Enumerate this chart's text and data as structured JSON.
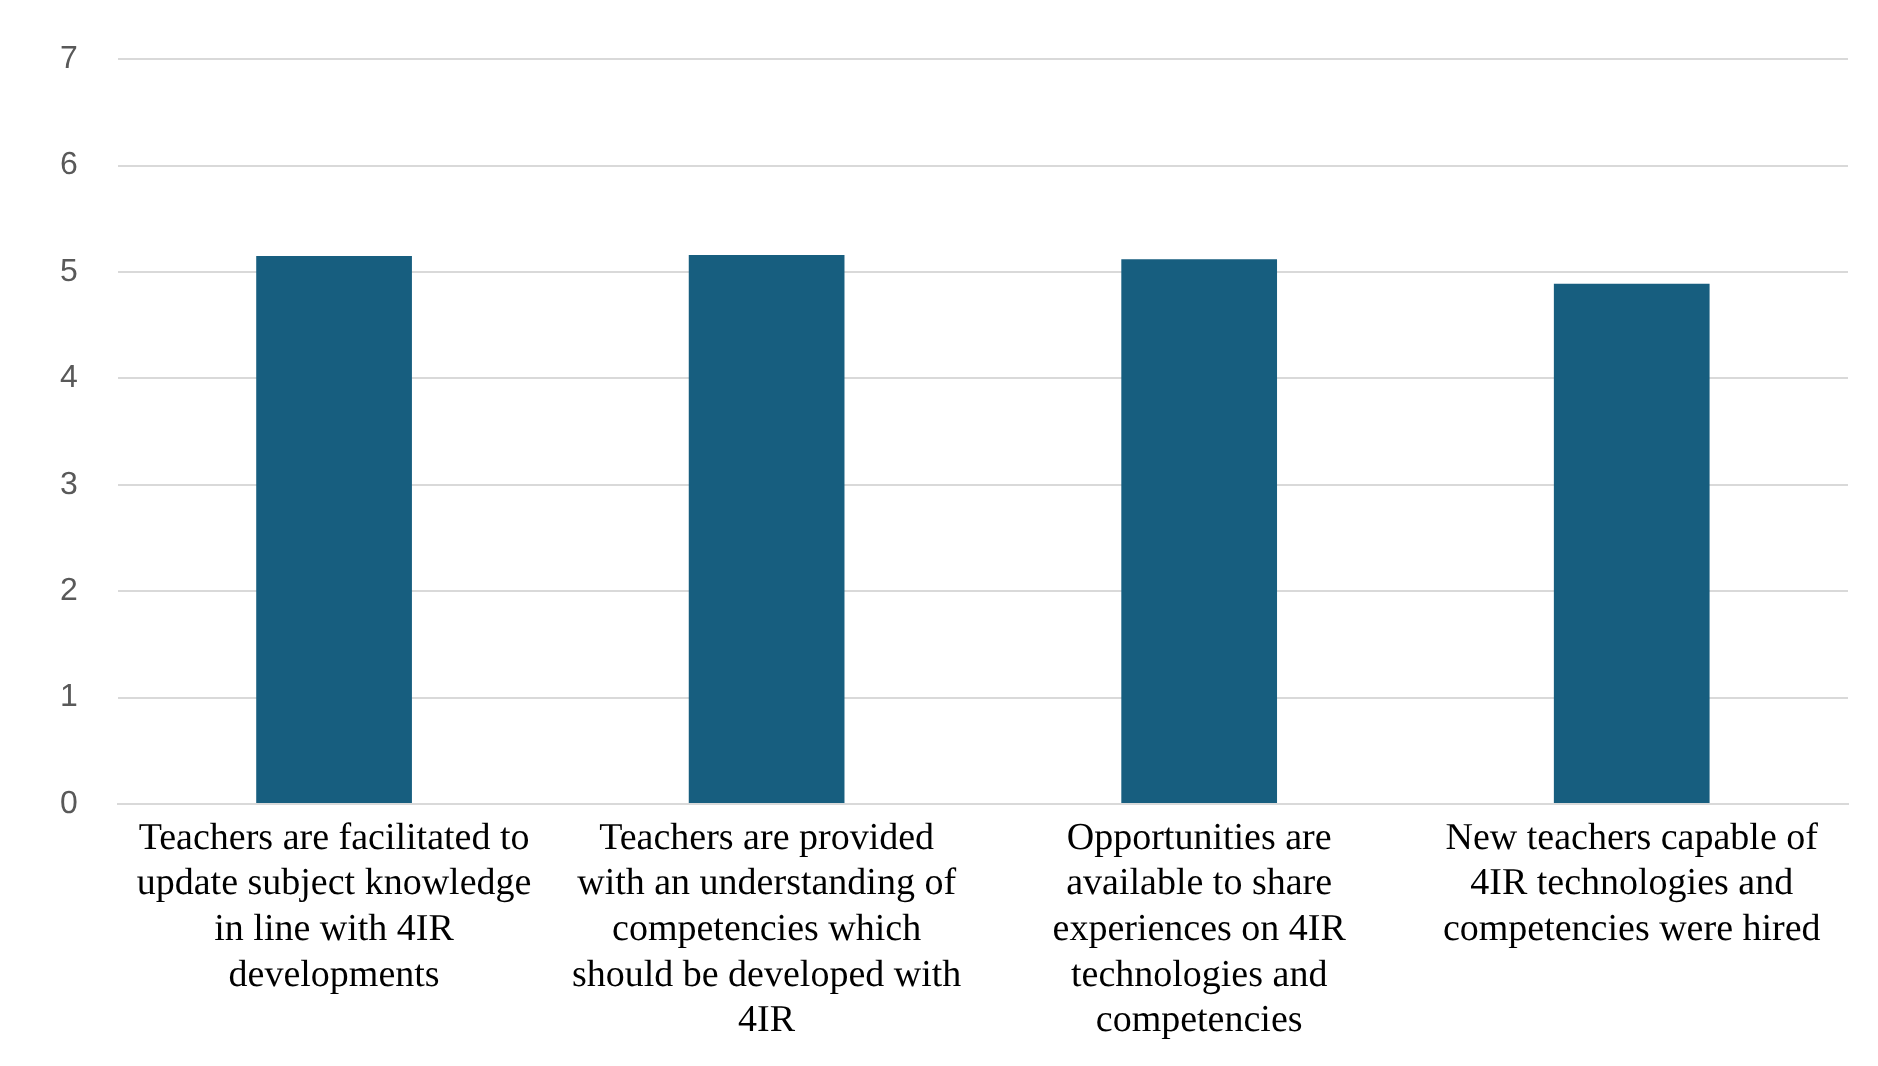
{
  "chart_data": {
    "type": "bar",
    "categories": [
      "Teachers are facilitated to update subject knowledge in line with 4IR developments",
      "Teachers are provided with an understanding of competencies which should be developed with 4IR",
      "Opportunities are available to share experiences on 4IR technologies and competencies",
      "New teachers capable of 4IR technologies and competencies were hired"
    ],
    "values": [
      5.15,
      5.16,
      5.12,
      4.89
    ],
    "color": "#175e7f",
    "ylim": [
      0,
      7
    ],
    "yticks": [
      0,
      1,
      2,
      3,
      4,
      5,
      6,
      7
    ],
    "grid": "y",
    "legend": false
  }
}
